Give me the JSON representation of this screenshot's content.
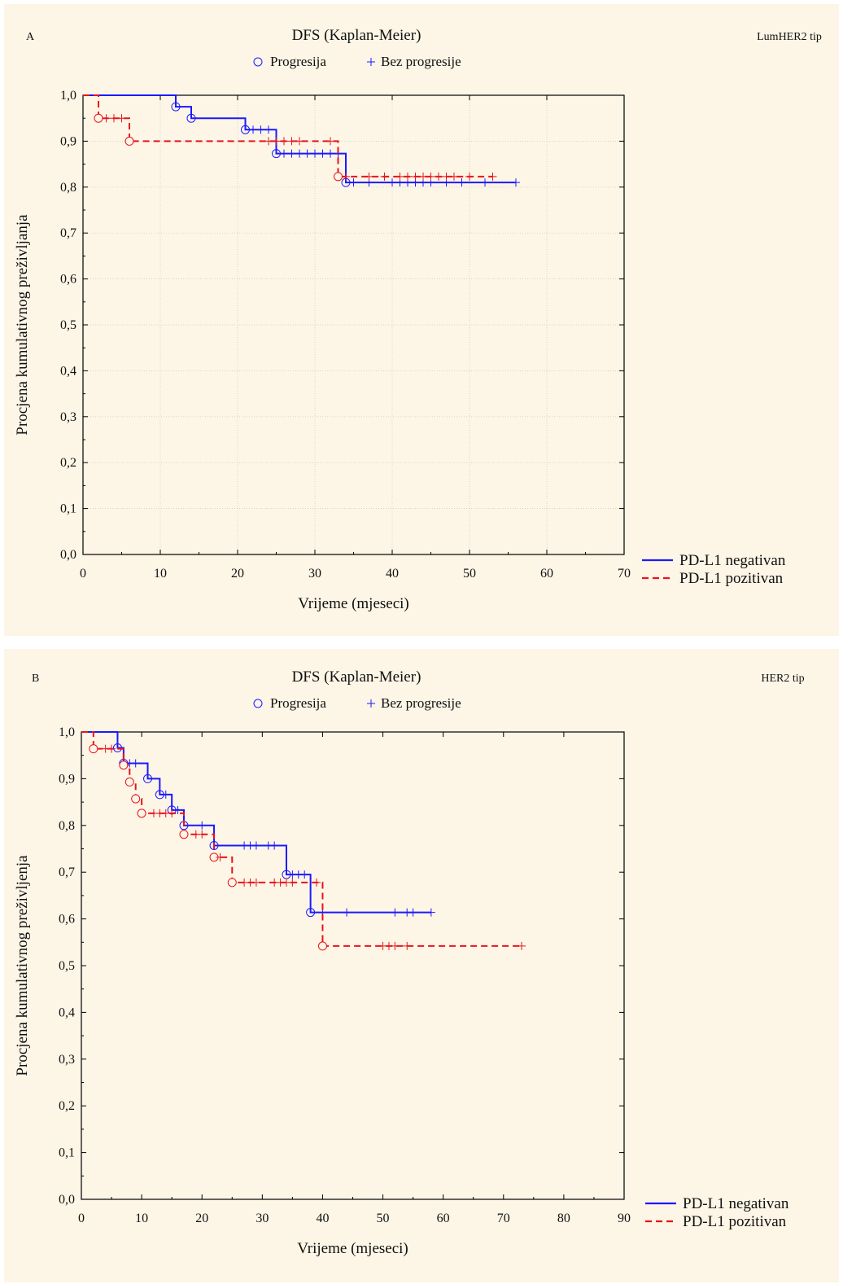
{
  "chart_data": [
    {
      "type": "kaplan-meier",
      "panel_label": "A",
      "title": "DFS (Kaplan-Meier)",
      "subtitle": "LumHER2 tip",
      "marker_legend": [
        {
          "symbol": "circle",
          "label": "Progresija"
        },
        {
          "symbol": "plus",
          "label": "Bez progresije"
        }
      ],
      "xlabel": "Vrijeme (mjeseci)",
      "ylabel": "Procjena kumulativnog preživljanja",
      "xlim": [
        0,
        70
      ],
      "ylim": [
        0,
        1
      ],
      "xticks": [
        "0",
        "10",
        "20",
        "30",
        "40",
        "50",
        "60",
        "70"
      ],
      "yticks": [
        "0,0",
        "0,1",
        "0,2",
        "0,3",
        "0,4",
        "0,5",
        "0,6",
        "0,7",
        "0,8",
        "0,9",
        "1,0"
      ],
      "grid": true,
      "legend_position": "bottom-right",
      "series": [
        {
          "name": "PD-L1 negativan",
          "color": "#1a1aff",
          "dash": false,
          "steps": [
            [
              0,
              1.0
            ],
            [
              12,
              0.975
            ],
            [
              14,
              0.95
            ],
            [
              21,
              0.925
            ],
            [
              25,
              0.873
            ],
            [
              34,
              0.81
            ],
            [
              56,
              0.81
            ]
          ],
          "events": [
            [
              12,
              0.975
            ],
            [
              14,
              0.95
            ],
            [
              21,
              0.925
            ],
            [
              25,
              0.873
            ],
            [
              34,
              0.81
            ]
          ],
          "censored": [
            [
              22,
              0.925
            ],
            [
              23,
              0.925
            ],
            [
              24,
              0.925
            ],
            [
              26,
              0.873
            ],
            [
              27,
              0.873
            ],
            [
              28,
              0.873
            ],
            [
              29,
              0.873
            ],
            [
              30,
              0.873
            ],
            [
              31,
              0.873
            ],
            [
              32,
              0.873
            ],
            [
              33,
              0.873
            ],
            [
              35,
              0.81
            ],
            [
              37,
              0.81
            ],
            [
              40,
              0.81
            ],
            [
              41,
              0.81
            ],
            [
              42,
              0.81
            ],
            [
              43,
              0.81
            ],
            [
              44,
              0.81
            ],
            [
              45,
              0.81
            ],
            [
              47,
              0.81
            ],
            [
              49,
              0.81
            ],
            [
              52,
              0.81
            ],
            [
              56,
              0.81
            ]
          ]
        },
        {
          "name": "PD-L1 pozitivan",
          "color": "#e8141b",
          "dash": true,
          "steps": [
            [
              0,
              1.0
            ],
            [
              2,
              0.95
            ],
            [
              6,
              0.9
            ],
            [
              33,
              0.823
            ],
            [
              53,
              0.823
            ]
          ],
          "events": [
            [
              2,
              0.95
            ],
            [
              6,
              0.9
            ],
            [
              33,
              0.823
            ]
          ],
          "censored": [
            [
              3,
              0.95
            ],
            [
              4,
              0.95
            ],
            [
              5,
              0.95
            ],
            [
              24,
              0.9
            ],
            [
              25,
              0.9
            ],
            [
              26,
              0.9
            ],
            [
              27,
              0.9
            ],
            [
              28,
              0.9
            ],
            [
              32,
              0.9
            ],
            [
              34,
              0.823
            ],
            [
              37,
              0.823
            ],
            [
              39,
              0.823
            ],
            [
              41,
              0.823
            ],
            [
              42,
              0.823
            ],
            [
              43,
              0.823
            ],
            [
              44,
              0.823
            ],
            [
              45,
              0.823
            ],
            [
              46,
              0.823
            ],
            [
              47,
              0.823
            ],
            [
              48,
              0.823
            ],
            [
              50,
              0.823
            ],
            [
              53,
              0.823
            ]
          ]
        }
      ]
    },
    {
      "type": "kaplan-meier",
      "panel_label": "B",
      "title": "DFS (Kaplan-Meier)",
      "subtitle": "HER2 tip",
      "marker_legend": [
        {
          "symbol": "circle",
          "label": "Progresija"
        },
        {
          "symbol": "plus",
          "label": "Bez progresije"
        }
      ],
      "xlabel": "Vrijeme (mjeseci)",
      "ylabel": "Procjena kumulativnog preživljenja",
      "xlim": [
        0,
        90
      ],
      "ylim": [
        0,
        1
      ],
      "xticks": [
        "0",
        "10",
        "20",
        "30",
        "40",
        "50",
        "60",
        "70",
        "80",
        "90"
      ],
      "yticks": [
        "0,0",
        "0,1",
        "0,2",
        "0,3",
        "0,4",
        "0,5",
        "0,6",
        "0,7",
        "0,8",
        "0,9",
        "1,0"
      ],
      "grid": false,
      "legend_position": "bottom-right",
      "series": [
        {
          "name": "PD-L1 negativan",
          "color": "#1a1aff",
          "dash": false,
          "steps": [
            [
              0,
              1.0
            ],
            [
              6,
              0.966
            ],
            [
              7,
              0.933
            ],
            [
              11,
              0.9
            ],
            [
              13,
              0.866
            ],
            [
              15,
              0.833
            ],
            [
              17,
              0.8
            ],
            [
              22,
              0.757
            ],
            [
              34,
              0.695
            ],
            [
              38,
              0.614
            ],
            [
              58,
              0.614
            ]
          ],
          "events": [
            [
              6,
              0.966
            ],
            [
              7,
              0.933
            ],
            [
              11,
              0.9
            ],
            [
              13,
              0.866
            ],
            [
              15,
              0.833
            ],
            [
              17,
              0.8
            ],
            [
              22,
              0.757
            ],
            [
              34,
              0.695
            ],
            [
              38,
              0.614
            ]
          ],
          "censored": [
            [
              8,
              0.933
            ],
            [
              9,
              0.933
            ],
            [
              14,
              0.866
            ],
            [
              16,
              0.833
            ],
            [
              20,
              0.8
            ],
            [
              27,
              0.757
            ],
            [
              28,
              0.757
            ],
            [
              29,
              0.757
            ],
            [
              31,
              0.757
            ],
            [
              32,
              0.757
            ],
            [
              35,
              0.695
            ],
            [
              36,
              0.695
            ],
            [
              37,
              0.695
            ],
            [
              40,
              0.614
            ],
            [
              44,
              0.614
            ],
            [
              52,
              0.614
            ],
            [
              54,
              0.614
            ],
            [
              55,
              0.614
            ],
            [
              58,
              0.614
            ]
          ]
        },
        {
          "name": "PD-L1 pozitivan",
          "color": "#e8141b",
          "dash": true,
          "steps": [
            [
              0,
              1.0
            ],
            [
              2,
              0.964
            ],
            [
              7,
              0.929
            ],
            [
              8,
              0.893
            ],
            [
              9,
              0.857
            ],
            [
              10,
              0.826
            ],
            [
              17,
              0.781
            ],
            [
              22,
              0.732
            ],
            [
              25,
              0.678
            ],
            [
              40,
              0.542
            ],
            [
              73,
              0.542
            ]
          ],
          "events": [
            [
              2,
              0.964
            ],
            [
              7,
              0.929
            ],
            [
              8,
              0.893
            ],
            [
              9,
              0.857
            ],
            [
              10,
              0.826
            ],
            [
              17,
              0.781
            ],
            [
              22,
              0.732
            ],
            [
              25,
              0.678
            ],
            [
              40,
              0.542
            ]
          ],
          "censored": [
            [
              4,
              0.964
            ],
            [
              5,
              0.964
            ],
            [
              12,
              0.826
            ],
            [
              13,
              0.826
            ],
            [
              14,
              0.826
            ],
            [
              15,
              0.826
            ],
            [
              19,
              0.781
            ],
            [
              20,
              0.781
            ],
            [
              23,
              0.732
            ],
            [
              27,
              0.678
            ],
            [
              28,
              0.678
            ],
            [
              29,
              0.678
            ],
            [
              32,
              0.678
            ],
            [
              33,
              0.678
            ],
            [
              34,
              0.678
            ],
            [
              35,
              0.678
            ],
            [
              39,
              0.678
            ],
            [
              50,
              0.542
            ],
            [
              51,
              0.542
            ],
            [
              52,
              0.542
            ],
            [
              54,
              0.542
            ],
            [
              73,
              0.542
            ]
          ]
        }
      ]
    }
  ]
}
